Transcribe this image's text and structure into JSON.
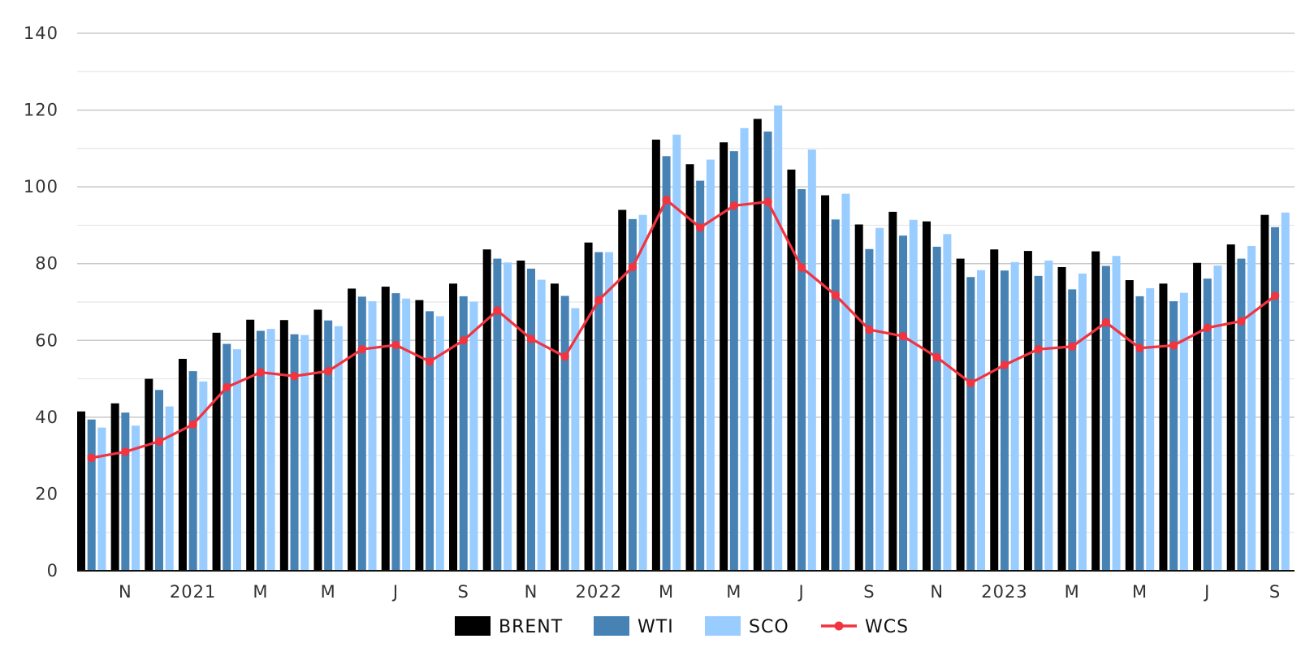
{
  "chart_data": {
    "type": "bar",
    "x_tick_labels": [
      "",
      "N",
      "",
      "2021",
      "",
      "M",
      "",
      "M",
      "",
      "J",
      "",
      "S",
      "",
      "N",
      "",
      "2022",
      "",
      "M",
      "",
      "M",
      "",
      "J",
      "",
      "S",
      "",
      "N",
      "",
      "2023",
      "",
      "M",
      "",
      "M",
      "",
      "J",
      "",
      "S"
    ],
    "y_ticks": [
      "0",
      "20",
      "40",
      "60",
      "80",
      "100",
      "120",
      "140"
    ],
    "ylim": [
      0,
      140
    ],
    "grid": true,
    "legend_position": "bottom-center",
    "series": [
      {
        "name": "BRENT",
        "kind": "bar",
        "color": "#000000",
        "values": [
          41.5,
          43.6,
          50.0,
          55.2,
          62.0,
          65.4,
          65.3,
          68.0,
          73.5,
          74.0,
          70.5,
          74.8,
          83.7,
          80.8,
          74.8,
          85.5,
          94.0,
          112.3,
          105.9,
          111.6,
          117.7,
          104.5,
          97.8,
          90.2,
          93.5,
          91.0,
          81.3,
          83.7,
          83.3,
          79.1,
          83.2,
          75.7,
          74.8,
          80.2,
          85.0,
          92.7
        ]
      },
      {
        "name": "WTI",
        "kind": "bar",
        "color": "#4682b4",
        "values": [
          39.4,
          41.2,
          47.1,
          52.0,
          59.1,
          62.5,
          61.6,
          65.2,
          71.4,
          72.3,
          67.6,
          71.5,
          81.3,
          78.7,
          71.6,
          83.0,
          91.6,
          108.0,
          101.6,
          109.3,
          114.4,
          99.4,
          91.5,
          83.8,
          87.3,
          84.4,
          76.5,
          78.2,
          76.8,
          73.3,
          79.4,
          71.5,
          70.2,
          76.1,
          81.3,
          89.5
        ]
      },
      {
        "name": "SCO",
        "kind": "bar",
        "color": "#99ccff",
        "values": [
          37.3,
          37.8,
          42.8,
          49.3,
          57.7,
          63.0,
          61.4,
          63.7,
          70.2,
          70.9,
          66.3,
          70.1,
          80.3,
          75.8,
          68.4,
          83.0,
          92.7,
          113.6,
          107.1,
          115.3,
          121.2,
          109.7,
          98.2,
          89.3,
          91.4,
          87.7,
          78.3,
          80.4,
          80.8,
          77.4,
          82.0,
          73.6,
          72.4,
          79.5,
          84.6,
          93.3
        ]
      },
      {
        "name": "WCS",
        "kind": "line",
        "color": "#f1343f",
        "values": [
          29.4,
          31.0,
          33.7,
          38.1,
          47.8,
          51.7,
          50.7,
          52.0,
          57.7,
          58.8,
          54.5,
          60.0,
          67.8,
          60.4,
          55.8,
          70.5,
          79.1,
          96.6,
          89.4,
          95.1,
          96.1,
          79.0,
          71.8,
          62.8,
          61.1,
          55.6,
          48.9,
          53.6,
          57.7,
          58.4,
          64.7,
          58.0,
          58.7,
          63.3,
          65.0,
          71.6
        ]
      }
    ]
  }
}
